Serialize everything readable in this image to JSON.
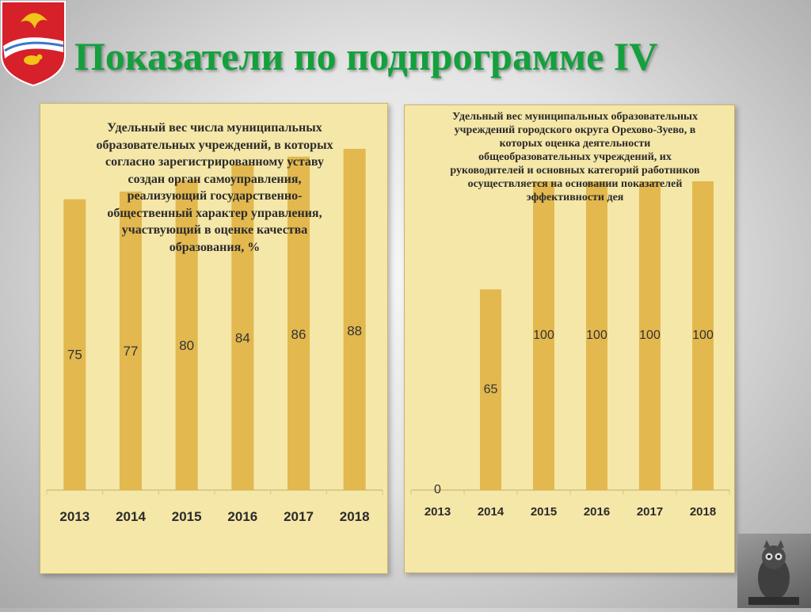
{
  "page": {
    "title": "Показатели по подпрограмме IV",
    "colors": {
      "title": "#14a03c",
      "panel_background": "#f5e7a8",
      "bar": "#e2b84f",
      "text": "#2b2b2b"
    },
    "icons": [
      "coat-of-arms-icon",
      "owl-icon"
    ]
  },
  "chart_data": [
    {
      "type": "bar",
      "title": "Удельный вес числа муниципальных образовательных учреждений, в которых согласно зарегистрированному уставу создан орган самоуправления, реализующий государственно-общественный характер управления, участвующий в оценке качества образования, %",
      "categories": [
        "2013",
        "2014",
        "2015",
        "2016",
        "2017",
        "2018"
      ],
      "values": [
        75,
        77,
        80,
        84,
        86,
        88
      ],
      "data_labels": [
        "75",
        "77",
        "80",
        "84",
        "86",
        "88"
      ],
      "legend": false,
      "grid": false,
      "color": "#e2b84f"
    },
    {
      "type": "bar",
      "title": "Удельный вес муниципальных образовательных учреждений городского округа Орехово-Зуево, в которых оценка деятельности общеобразовательных учреждений, их руководителей и основных категорий работников осуществляется на основании показателей эффективности дея",
      "categories": [
        "2013",
        "2014",
        "2015",
        "2016",
        "2017",
        "2018"
      ],
      "values": [
        0,
        65,
        100,
        100,
        100,
        100
      ],
      "data_labels": [
        "0",
        "65",
        "100",
        "100",
        "100",
        "100"
      ],
      "legend": false,
      "grid": false,
      "color": "#e2b84f"
    }
  ]
}
